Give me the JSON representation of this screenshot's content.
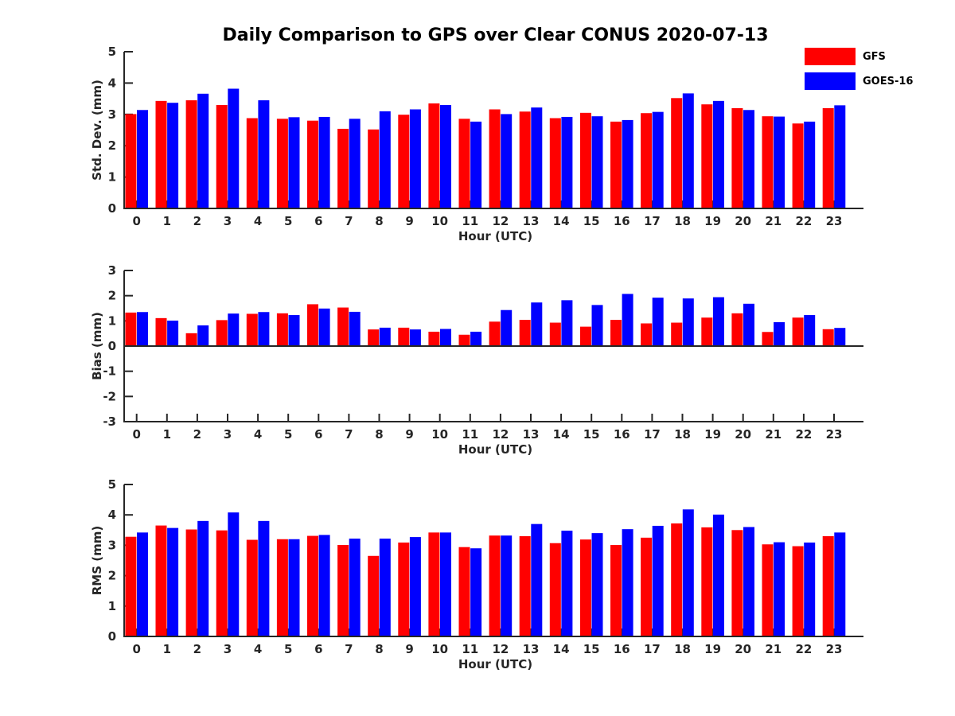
{
  "title": "Daily Comparison to GPS over Clear CONUS 2020-07-13",
  "legend": {
    "items": [
      {
        "label": "GFS",
        "color": "#ff0000"
      },
      {
        "label": "GOES-16",
        "color": "#0000ff"
      }
    ]
  },
  "colors": {
    "gfs": "#ff0000",
    "goes16": "#0000ff",
    "axis": "#262626"
  },
  "chart_data": [
    {
      "type": "bar",
      "panel": "std-dev",
      "title": "",
      "ylabel": "Std. Dev. (mm)",
      "xlabel": "Hour (UTC)",
      "ylim": [
        0,
        5
      ],
      "yticks": [
        0,
        1,
        2,
        3,
        4,
        5
      ],
      "grid": false,
      "legend_position": "top-right",
      "categories": [
        "0",
        "1",
        "2",
        "3",
        "4",
        "5",
        "6",
        "7",
        "8",
        "9",
        "10",
        "11",
        "12",
        "13",
        "14",
        "15",
        "16",
        "17",
        "18",
        "19",
        "20",
        "21",
        "22",
        "23"
      ],
      "series": [
        {
          "name": "GFS",
          "color": "#ff0000",
          "values": [
            3.01,
            3.43,
            3.45,
            3.3,
            2.88,
            2.86,
            2.8,
            2.54,
            2.52,
            2.99,
            3.35,
            2.86,
            3.16,
            3.09,
            2.88,
            3.05,
            2.77,
            3.04,
            3.52,
            3.32,
            3.2,
            2.94,
            2.71,
            3.2
          ]
        },
        {
          "name": "GOES-16",
          "color": "#0000ff",
          "values": [
            3.14,
            3.37,
            3.66,
            3.82,
            3.45,
            2.91,
            2.92,
            2.86,
            3.1,
            3.16,
            3.3,
            2.77,
            3.01,
            3.22,
            2.92,
            2.94,
            2.82,
            3.08,
            3.67,
            3.43,
            3.14,
            2.93,
            2.77,
            3.29
          ]
        }
      ]
    },
    {
      "type": "bar",
      "panel": "bias",
      "title": "",
      "ylabel": "Bias (mm)",
      "xlabel": "Hour (UTC)",
      "ylim": [
        -3,
        3
      ],
      "yticks": [
        -3,
        -2,
        -1,
        0,
        1,
        2,
        3
      ],
      "zero_line": true,
      "grid": false,
      "categories": [
        "0",
        "1",
        "2",
        "3",
        "4",
        "5",
        "6",
        "7",
        "8",
        "9",
        "10",
        "11",
        "12",
        "13",
        "14",
        "15",
        "16",
        "17",
        "18",
        "19",
        "20",
        "21",
        "22",
        "23"
      ],
      "series": [
        {
          "name": "GFS",
          "color": "#ff0000",
          "values": [
            1.33,
            1.11,
            0.51,
            1.03,
            1.28,
            1.3,
            1.66,
            1.53,
            0.66,
            0.73,
            0.57,
            0.45,
            0.97,
            1.04,
            0.93,
            0.77,
            1.04,
            0.9,
            0.93,
            1.13,
            1.3,
            0.56,
            1.13,
            0.67
          ]
        },
        {
          "name": "GOES-16",
          "color": "#0000ff",
          "values": [
            1.35,
            1.01,
            0.82,
            1.29,
            1.35,
            1.23,
            1.49,
            1.36,
            0.73,
            0.66,
            0.68,
            0.57,
            1.43,
            1.73,
            1.82,
            1.63,
            2.07,
            1.92,
            1.89,
            1.94,
            1.68,
            0.95,
            1.23,
            0.72
          ]
        }
      ]
    },
    {
      "type": "bar",
      "panel": "rms",
      "title": "",
      "ylabel": "RMS (mm)",
      "xlabel": "Hour (UTC)",
      "ylim": [
        0,
        5
      ],
      "yticks": [
        0,
        1,
        2,
        3,
        4,
        5
      ],
      "grid": false,
      "categories": [
        "0",
        "1",
        "2",
        "3",
        "4",
        "5",
        "6",
        "7",
        "8",
        "9",
        "10",
        "11",
        "12",
        "13",
        "14",
        "15",
        "16",
        "17",
        "18",
        "19",
        "20",
        "21",
        "22",
        "23"
      ],
      "series": [
        {
          "name": "GFS",
          "color": "#ff0000",
          "values": [
            3.28,
            3.65,
            3.52,
            3.49,
            3.18,
            3.2,
            3.31,
            3.01,
            2.65,
            3.09,
            3.42,
            2.94,
            3.32,
            3.3,
            3.07,
            3.19,
            3.01,
            3.25,
            3.72,
            3.59,
            3.5,
            3.03,
            2.97,
            3.3
          ]
        },
        {
          "name": "GOES-16",
          "color": "#0000ff",
          "values": [
            3.42,
            3.57,
            3.8,
            4.08,
            3.8,
            3.2,
            3.34,
            3.22,
            3.22,
            3.27,
            3.42,
            2.9,
            3.32,
            3.7,
            3.48,
            3.4,
            3.53,
            3.64,
            4.18,
            4.01,
            3.6,
            3.1,
            3.09,
            3.42
          ]
        }
      ]
    }
  ]
}
